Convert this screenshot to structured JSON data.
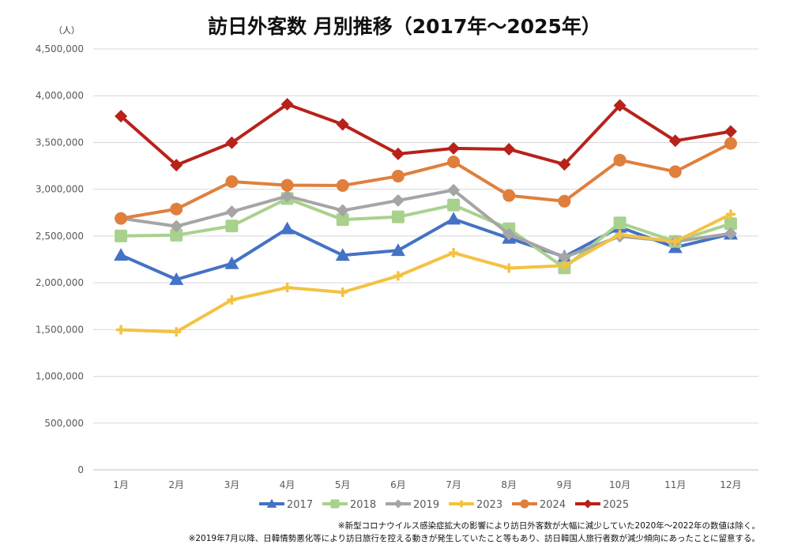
{
  "chart_data": {
    "type": "line",
    "title": "訪日外客数 月別推移（2017年～2025年）",
    "ylabel": "（人）",
    "xlabel": "",
    "categories": [
      "1月",
      "2月",
      "3月",
      "4月",
      "5月",
      "6月",
      "7月",
      "8月",
      "9月",
      "10月",
      "11月",
      "12月"
    ],
    "ylim": [
      0,
      4500000
    ],
    "yticks": [
      0,
      500000,
      1000000,
      1500000,
      2000000,
      2500000,
      3000000,
      3500000,
      4000000,
      4500000
    ],
    "ytick_labels": [
      "0",
      "500,000",
      "1,000,000",
      "1,500,000",
      "2,000,000",
      "2,500,000",
      "3,000,000",
      "3,500,000",
      "4,000,000",
      "4,500,000"
    ],
    "grid": true,
    "legend_position": "bottom",
    "series": [
      {
        "name": "2017",
        "color": "#4472c4",
        "marker": "triangle",
        "values": [
          2295700,
          2035800,
          2205700,
          2578000,
          2294600,
          2346400,
          2681600,
          2477100,
          2279100,
          2595100,
          2377900,
          2521500
        ]
      },
      {
        "name": "2018",
        "color": "#a9d18e",
        "marker": "square",
        "values": [
          2501400,
          2509300,
          2607900,
          2900700,
          2675100,
          2704600,
          2832000,
          2578000,
          2159600,
          2640600,
          2442000,
          2632000
        ]
      },
      {
        "name": "2019",
        "color": "#a5a5a5",
        "marker": "diamond",
        "values": [
          2689300,
          2604300,
          2760100,
          2926700,
          2773100,
          2880000,
          2991200,
          2520100,
          2272900,
          2496600,
          2441300,
          2526400
        ]
      },
      {
        "name": "2023",
        "color": "#f4c242",
        "marker": "plus",
        "values": [
          1497300,
          1475300,
          1817500,
          1949100,
          1898900,
          2073300,
          2320600,
          2156900,
          2183800,
          2516500,
          2440200,
          2733000
        ]
      },
      {
        "name": "2024",
        "color": "#e07f3c",
        "marker": "circle",
        "values": [
          2688100,
          2788000,
          3081600,
          3042900,
          3040100,
          3140300,
          3292600,
          2932900,
          2872300,
          3312200,
          3188400,
          3489800
        ]
      },
      {
        "name": "2025",
        "color": "#b7221a",
        "marker": "diamond",
        "values": [
          3781600,
          3258100,
          3497600,
          3908900,
          3693300,
          3377800,
          3437000,
          3428000,
          3266800,
          3896300,
          3518000,
          3617700
        ]
      }
    ]
  },
  "notes": [
    "※新型コロナウイルス感染症拡大の影響により訪日外客数が大幅に減少していた2020年～2022年の数値は除く。",
    "※2019年7月以降、日韓情勢悪化等により訪日旅行を控える動きが発生していたこと等もあり、訪日韓国人旅行者数が減少傾向にあったことに留意する。"
  ]
}
